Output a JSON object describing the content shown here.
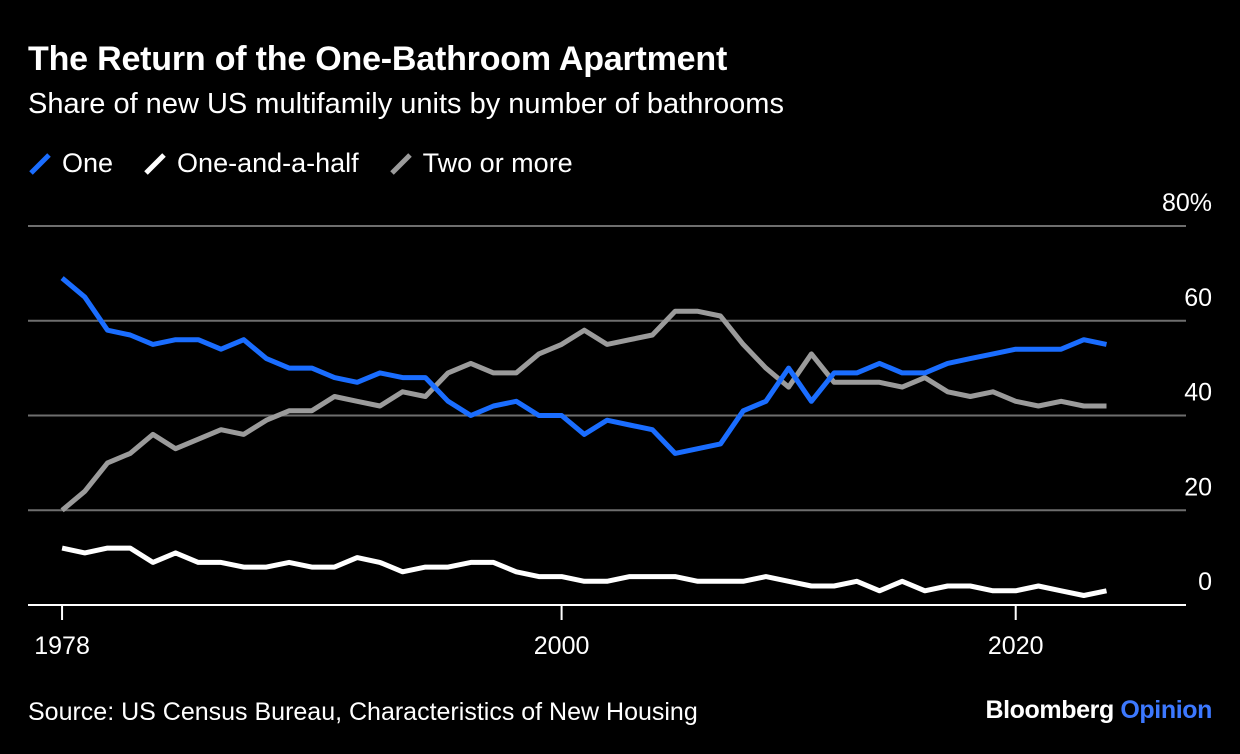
{
  "header": {
    "title": "The Return of the One-Bathroom Apartment",
    "subtitle": "Share of new US multifamily units by number of bathrooms"
  },
  "footer": {
    "source": "Source: US Census Bureau, Characteristics of New Housing",
    "brand_main": "Bloomberg",
    "brand_accent": "Opinion",
    "brand_accent_color": "#3c78ff"
  },
  "chart_data": {
    "type": "line",
    "x": [
      1978,
      1979,
      1980,
      1981,
      1982,
      1983,
      1984,
      1985,
      1986,
      1987,
      1988,
      1989,
      1990,
      1991,
      1992,
      1993,
      1994,
      1995,
      1996,
      1997,
      1998,
      1999,
      2000,
      2001,
      2002,
      2003,
      2004,
      2005,
      2006,
      2007,
      2008,
      2009,
      2010,
      2011,
      2012,
      2013,
      2014,
      2015,
      2016,
      2017,
      2018,
      2019,
      2020,
      2021,
      2022,
      2023,
      2024
    ],
    "series": [
      {
        "name": "One",
        "color": "#1a6dff",
        "values": [
          69,
          65,
          58,
          57,
          55,
          56,
          56,
          54,
          56,
          52,
          50,
          50,
          48,
          47,
          49,
          48,
          48,
          43,
          40,
          42,
          43,
          40,
          40,
          36,
          39,
          38,
          37,
          32,
          33,
          34,
          41,
          43,
          50,
          43,
          49,
          49,
          51,
          49,
          49,
          51,
          52,
          53,
          54,
          54,
          54,
          56,
          55
        ]
      },
      {
        "name": "One-and-a-half",
        "color": "#ffffff",
        "values": [
          12,
          11,
          12,
          12,
          9,
          11,
          9,
          9,
          8,
          8,
          9,
          8,
          8,
          10,
          9,
          7,
          8,
          8,
          9,
          9,
          7,
          6,
          6,
          5,
          5,
          6,
          6,
          6,
          5,
          5,
          5,
          6,
          5,
          4,
          4,
          5,
          3,
          5,
          3,
          4,
          4,
          3,
          3,
          4,
          3,
          2,
          3
        ]
      },
      {
        "name": "Two or more",
        "color": "#9b9b9b",
        "values": [
          20,
          24,
          30,
          32,
          36,
          33,
          35,
          37,
          36,
          39,
          41,
          41,
          44,
          43,
          42,
          45,
          44,
          49,
          51,
          49,
          49,
          53,
          55,
          58,
          55,
          56,
          57,
          62,
          62,
          61,
          55,
          50,
          46,
          53,
          47,
          47,
          47,
          46,
          48,
          45,
          44,
          45,
          43,
          42,
          43,
          42,
          42
        ]
      }
    ],
    "ylim": [
      0,
      80
    ],
    "yticks": [
      0,
      20,
      40,
      60,
      80
    ],
    "ytick_labels": [
      "0",
      "20",
      "40",
      "60",
      "80%"
    ],
    "xticks": [
      1978,
      2000,
      2020
    ],
    "xtick_labels": [
      "1978",
      "2000",
      "2020"
    ],
    "xlim": [
      1976.5,
      2027.5
    ],
    "grid": true,
    "yaxis_side": "right",
    "legend_position": "top-left"
  }
}
